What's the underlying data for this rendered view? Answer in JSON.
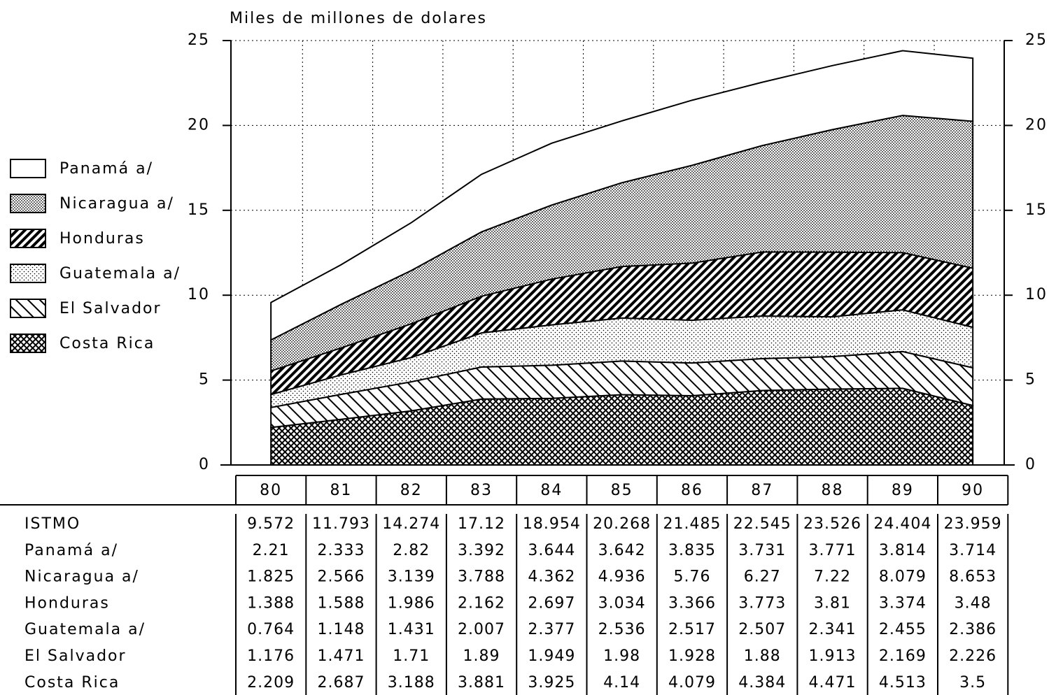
{
  "chart_data": {
    "type": "stacked-area",
    "title": "Miles de millones de dolares",
    "categories": [
      "80",
      "81",
      "82",
      "83",
      "84",
      "85",
      "86",
      "87",
      "88",
      "89",
      "90"
    ],
    "total": {
      "name": "ISTMO",
      "values": [
        9.572,
        11.793,
        14.274,
        17.12,
        18.954,
        20.268,
        21.485,
        22.545,
        23.526,
        24.404,
        23.959
      ]
    },
    "series": [
      {
        "name": "Panamá a/",
        "color": "#ffffff",
        "pattern": "none",
        "values": [
          2.21,
          2.333,
          2.82,
          3.392,
          3.644,
          3.642,
          3.835,
          3.731,
          3.771,
          3.814,
          3.714
        ]
      },
      {
        "name": "Nicaragua a/",
        "color": "#000000",
        "pattern": "dots-dense",
        "values": [
          1.825,
          2.566,
          3.139,
          3.788,
          4.362,
          4.936,
          5.76,
          6.27,
          7.22,
          8.079,
          8.653
        ]
      },
      {
        "name": "Honduras",
        "color": "#000000",
        "pattern": "diagonal-dense",
        "values": [
          1.388,
          1.588,
          1.986,
          2.162,
          2.697,
          3.034,
          3.366,
          3.773,
          3.81,
          3.374,
          3.48
        ]
      },
      {
        "name": "Guatemala a/",
        "color": "#000000",
        "pattern": "dots",
        "values": [
          0.764,
          1.148,
          1.431,
          2.007,
          2.377,
          2.536,
          2.517,
          2.507,
          2.341,
          2.455,
          2.386
        ]
      },
      {
        "name": "El Salvador",
        "color": "#000000",
        "pattern": "diagonal",
        "values": [
          1.176,
          1.471,
          1.71,
          1.89,
          1.949,
          1.98,
          1.928,
          1.88,
          1.913,
          2.169,
          2.226
        ]
      },
      {
        "name": "Costa Rica",
        "color": "#000000",
        "pattern": "crosshatch",
        "values": [
          2.209,
          2.687,
          3.188,
          3.881,
          3.925,
          4.14,
          4.079,
          4.384,
          4.471,
          4.513,
          3.5
        ]
      }
    ],
    "ylim": [
      0,
      25
    ],
    "yticks": [
      0,
      5,
      10,
      15,
      20,
      25
    ],
    "mirror_y_axis": true,
    "grid": true,
    "legend": "left"
  }
}
